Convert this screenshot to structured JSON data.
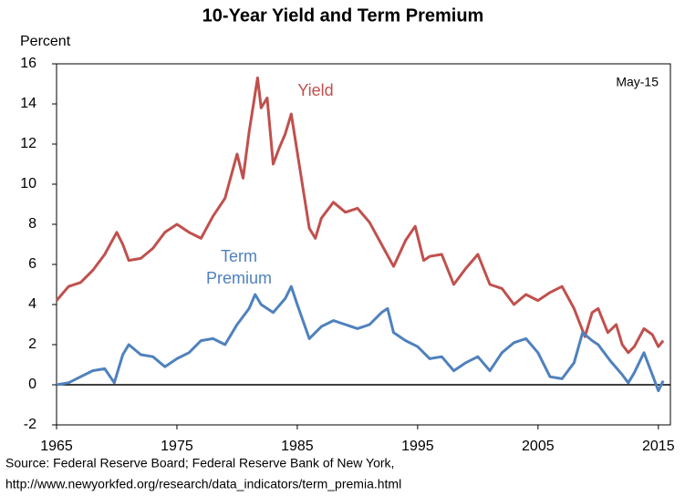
{
  "chart_data": {
    "type": "line",
    "title": "10-Year Yield and Term Premium",
    "y_label": "Percent",
    "annotation": "May-15",
    "source": [
      "Source: Federal Reserve Board; Federal Reserve Bank of New York,",
      "http://www.newyorkfed.org/research/data_indicators/term_premia.html"
    ],
    "xlim": [
      1965,
      2016
    ],
    "xticks": [
      1965,
      1975,
      1985,
      1995,
      2005,
      2015
    ],
    "ylim": [
      -2,
      16
    ],
    "yticks": [
      -2,
      0,
      2,
      4,
      6,
      8,
      10,
      12,
      14,
      16
    ],
    "grid": false,
    "series": [
      {
        "name": "Yield",
        "color": "#c0504d",
        "x": [
          1965,
          1966,
          1967,
          1968,
          1969,
          1970,
          1970.5,
          1971,
          1972,
          1973,
          1974,
          1975,
          1976,
          1977,
          1978,
          1979,
          1980,
          1980.5,
          1981,
          1981.7,
          1982,
          1982.5,
          1983,
          1983.5,
          1984,
          1984.5,
          1985,
          1986,
          1986.5,
          1987,
          1988,
          1989,
          1990,
          1991,
          1992,
          1993,
          1994,
          1994.8,
          1995.5,
          1996,
          1997,
          1998,
          1999,
          2000,
          2001,
          2002,
          2003,
          2004,
          2005,
          2006,
          2007,
          2008,
          2008.9,
          2009.5,
          2010,
          2010.8,
          2011.5,
          2012,
          2012.5,
          2013,
          2013.8,
          2014.5,
          2015,
          2015.4
        ],
        "values": [
          4.2,
          4.9,
          5.1,
          5.7,
          6.5,
          7.6,
          7.0,
          6.2,
          6.3,
          6.8,
          7.6,
          8.0,
          7.6,
          7.3,
          8.4,
          9.3,
          11.5,
          10.3,
          12.6,
          15.3,
          13.8,
          14.3,
          11.0,
          11.8,
          12.5,
          13.5,
          11.6,
          7.8,
          7.3,
          8.3,
          9.1,
          8.6,
          8.8,
          8.1,
          7.0,
          5.9,
          7.2,
          7.9,
          6.2,
          6.4,
          6.5,
          5.0,
          5.8,
          6.5,
          5.0,
          4.8,
          4.0,
          4.5,
          4.2,
          4.6,
          4.9,
          3.8,
          2.4,
          3.6,
          3.8,
          2.6,
          3.0,
          2.0,
          1.6,
          1.9,
          2.8,
          2.5,
          1.9,
          2.2
        ]
      },
      {
        "name": [
          "Term",
          "Premium"
        ],
        "color": "#4f81bd",
        "x": [
          1965,
          1966,
          1967,
          1968,
          1969,
          1969.8,
          1970.5,
          1971,
          1972,
          1973,
          1974,
          1975,
          1976,
          1977,
          1978,
          1979,
          1980,
          1981,
          1981.5,
          1982,
          1983,
          1984,
          1984.5,
          1985,
          1986,
          1987,
          1988,
          1989,
          1990,
          1991,
          1992,
          1992.5,
          1993,
          1994,
          1995,
          1996,
          1997,
          1998,
          1999,
          2000,
          2001,
          2002,
          2003,
          2004,
          2005,
          2006,
          2007,
          2008,
          2008.7,
          2009.5,
          2010,
          2011,
          2012,
          2012.5,
          2013,
          2013.8,
          2014.5,
          2015,
          2015.4
        ],
        "values": [
          0.0,
          0.1,
          0.4,
          0.7,
          0.8,
          0.1,
          1.5,
          2.0,
          1.5,
          1.4,
          0.9,
          1.3,
          1.6,
          2.2,
          2.3,
          2.0,
          3.0,
          3.8,
          4.5,
          4.0,
          3.6,
          4.3,
          4.9,
          4.0,
          2.3,
          2.9,
          3.2,
          3.0,
          2.8,
          3.0,
          3.6,
          3.8,
          2.6,
          2.2,
          1.9,
          1.3,
          1.4,
          0.7,
          1.1,
          1.4,
          0.7,
          1.6,
          2.1,
          2.3,
          1.6,
          0.4,
          0.3,
          1.1,
          2.6,
          2.2,
          2.0,
          1.2,
          0.5,
          0.1,
          0.6,
          1.6,
          0.5,
          -0.3,
          0.2
        ]
      }
    ]
  }
}
